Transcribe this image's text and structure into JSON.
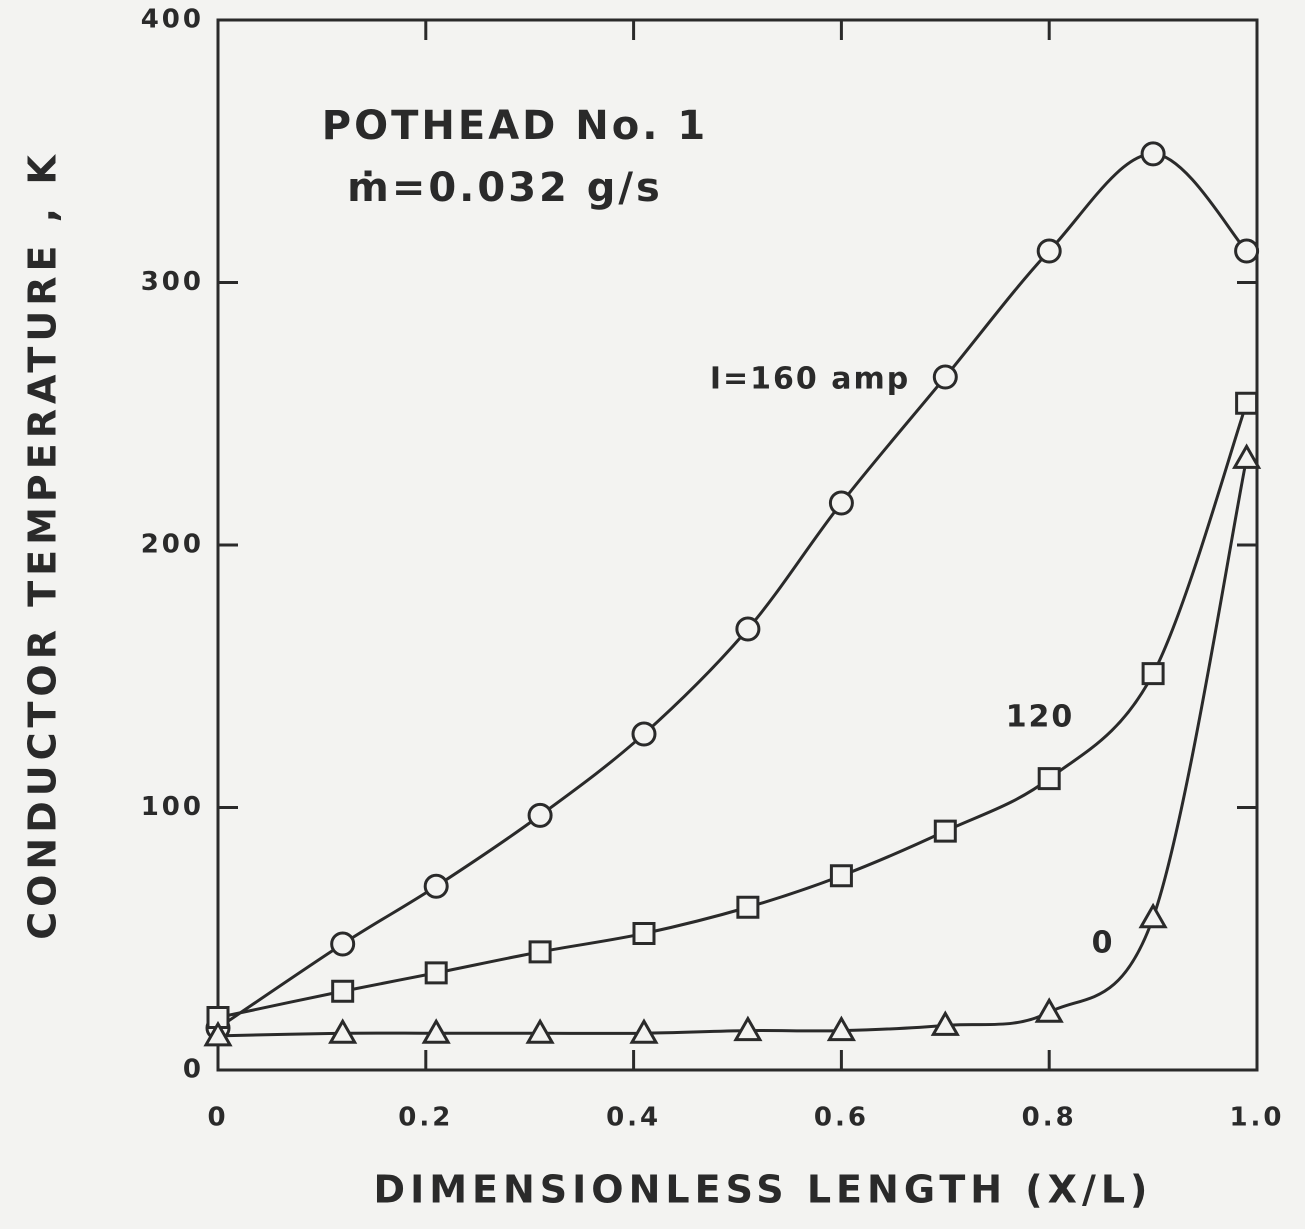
{
  "chart_data": {
    "type": "line",
    "title": "POTHEAD No. 1",
    "subtitle": "ṁ=0.032 g/s",
    "x_label": "DIMENSIONLESS LENGTH (X/L)",
    "y_label": "CONDUCTOR TEMPERATURE , K",
    "x": [
      0,
      0.12,
      0.21,
      0.31,
      0.41,
      0.51,
      0.6,
      0.7,
      0.8,
      0.9,
      0.99
    ],
    "series": [
      {
        "name": "I=160 amp",
        "color": "#2a2a2a",
        "marker": "circle",
        "values": [
          16,
          48,
          70,
          97,
          128,
          168,
          216,
          264,
          312,
          349,
          312
        ]
      },
      {
        "name": "120",
        "color": "#2a2a2a",
        "marker": "square",
        "values": [
          20,
          30,
          37,
          45,
          52,
          62,
          74,
          91,
          111,
          151,
          254
        ]
      },
      {
        "name": "0",
        "color": "#2a2a2a",
        "marker": "triangle",
        "values": [
          13,
          14,
          14,
          14,
          14,
          15,
          15,
          17,
          22,
          58,
          233
        ]
      }
    ],
    "xlim": [
      0,
      1
    ],
    "ylim": [
      0,
      400
    ],
    "xticks": [
      0,
      0.2,
      0.4,
      0.6,
      0.8,
      {
        "value": 1,
        "label": "1.0"
      }
    ],
    "yticks": [
      0,
      100,
      200,
      300,
      400
    ],
    "grid": false
  }
}
